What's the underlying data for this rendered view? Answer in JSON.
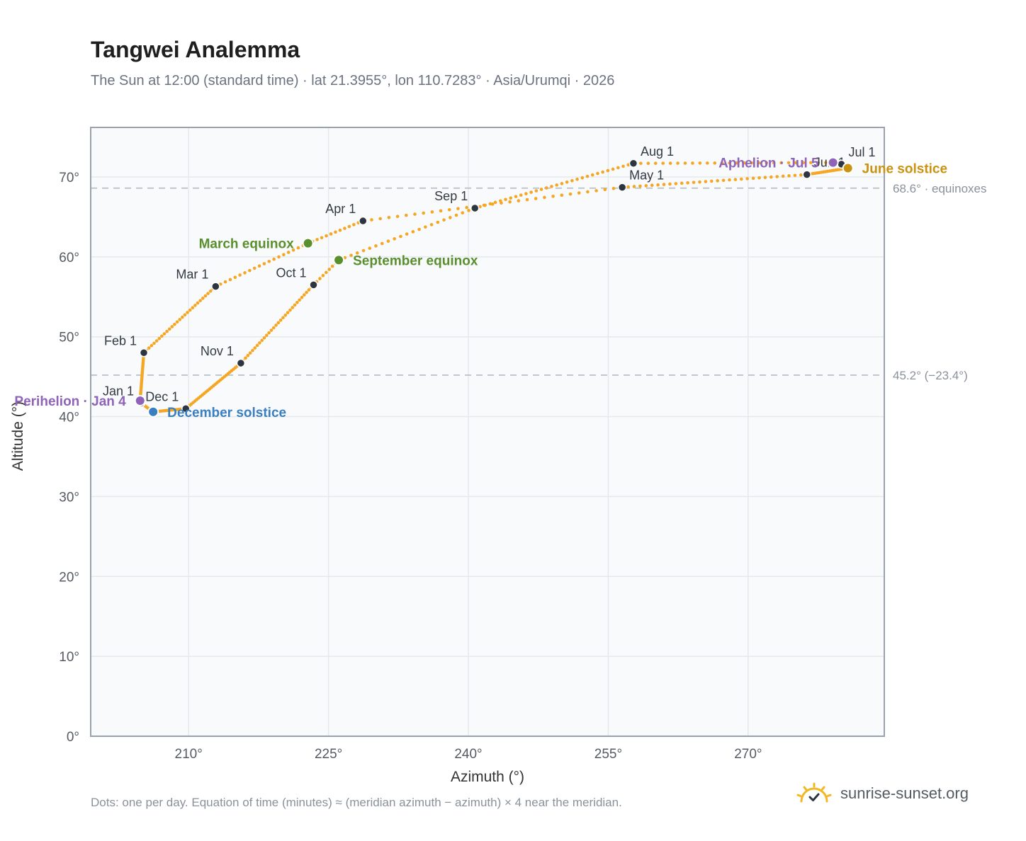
{
  "header": {
    "title": "Tangwei Analemma",
    "subtitle": "The Sun at 12:00 (standard time) · lat 21.3955°, lon 110.7283° · Asia/Urumqi · 2026"
  },
  "footer": {
    "note": "Dots: one per day. Equation of time (minutes) ≈ (meridian azimuth − azimuth) × 4 near the meridian.",
    "brand": "sunrise-sunset.org"
  },
  "colors": {
    "curve": "#f5a623",
    "month_dot": "#2d3540",
    "equinox": "#5a8f2e",
    "june_solstice": "#c9920f",
    "december_solstice": "#3a7fc1",
    "apsis": "#8e63b8",
    "reference_line": "#b7c0c8",
    "plot_bg": "#f8fafc",
    "grid": "#e6e9ec",
    "frame": "#98a2ae"
  },
  "chart_data": {
    "type": "scatter",
    "xlabel": "Azimuth (°)",
    "ylabel": "Altitude (°)",
    "xlim": [
      199.5,
      284.6
    ],
    "ylim": [
      0,
      76.2
    ],
    "xticks": [
      210,
      225,
      240,
      255,
      270
    ],
    "xtick_labels": [
      "210°",
      "225°",
      "240°",
      "255°",
      "270°"
    ],
    "yticks": [
      0,
      10,
      20,
      30,
      40,
      50,
      60,
      70
    ],
    "ytick_labels": [
      "0°",
      "10°",
      "20°",
      "30°",
      "40°",
      "50°",
      "60°",
      "70°"
    ],
    "grid": true,
    "reference_lines": [
      {
        "y": 68.6,
        "label": "68.6° · equinoxes"
      },
      {
        "y": 45.2,
        "label": "45.2° (−23.4°)"
      }
    ],
    "path_nodes": [
      {
        "day": 1,
        "az": 204.9,
        "alt": 41.7
      },
      {
        "day": 4,
        "az": 204.8,
        "alt": 42.0
      },
      {
        "day": 32,
        "az": 205.2,
        "alt": 48.0
      },
      {
        "day": 60,
        "az": 212.9,
        "alt": 56.3
      },
      {
        "day": 79,
        "az": 222.8,
        "alt": 61.7
      },
      {
        "day": 91,
        "az": 228.7,
        "alt": 64.5
      },
      {
        "day": 121,
        "az": 256.5,
        "alt": 68.7
      },
      {
        "day": 152,
        "az": 276.3,
        "alt": 70.3
      },
      {
        "day": 172,
        "az": 280.7,
        "alt": 71.1
      },
      {
        "day": 182,
        "az": 280.0,
        "alt": 71.6
      },
      {
        "day": 186,
        "az": 279.1,
        "alt": 71.8
      },
      {
        "day": 213,
        "az": 257.7,
        "alt": 71.7
      },
      {
        "day": 244,
        "az": 240.7,
        "alt": 66.1
      },
      {
        "day": 266,
        "az": 226.1,
        "alt": 59.6
      },
      {
        "day": 274,
        "az": 223.4,
        "alt": 56.5
      },
      {
        "day": 305,
        "az": 215.6,
        "alt": 46.7
      },
      {
        "day": 335,
        "az": 209.7,
        "alt": 41.0
      },
      {
        "day": 355,
        "az": 206.2,
        "alt": 40.6
      },
      {
        "day": 365,
        "az": 204.9,
        "alt": 41.7
      }
    ],
    "months": [
      {
        "label": "Jan 1",
        "az": 204.9,
        "alt": 41.7,
        "anchor": "end"
      },
      {
        "label": "Feb 1",
        "az": 205.2,
        "alt": 48.0,
        "anchor": "end"
      },
      {
        "label": "Mar 1",
        "az": 212.9,
        "alt": 56.3,
        "anchor": "end"
      },
      {
        "label": "Apr 1",
        "az": 228.7,
        "alt": 64.5,
        "anchor": "end"
      },
      {
        "label": "May 1",
        "az": 256.5,
        "alt": 68.7,
        "anchor": "start"
      },
      {
        "label": "Jun 1",
        "az": 276.3,
        "alt": 70.3,
        "anchor": "start"
      },
      {
        "label": "Jul 1",
        "az": 280.0,
        "alt": 71.6,
        "anchor": "start"
      },
      {
        "label": "Aug 1",
        "az": 257.7,
        "alt": 71.7,
        "anchor": "start"
      },
      {
        "label": "Sep 1",
        "az": 240.7,
        "alt": 66.1,
        "anchor": "end"
      },
      {
        "label": "Oct 1",
        "az": 223.4,
        "alt": 56.5,
        "anchor": "end"
      },
      {
        "label": "Nov 1",
        "az": 215.6,
        "alt": 46.7,
        "anchor": "end"
      },
      {
        "label": "Dec 1",
        "az": 209.7,
        "alt": 41.0,
        "anchor": "end"
      }
    ],
    "events": [
      {
        "label": "March equinox",
        "az": 222.8,
        "alt": 61.7,
        "color_key": "equinox",
        "anchor": "end"
      },
      {
        "label": "September equinox",
        "az": 226.1,
        "alt": 59.6,
        "color_key": "equinox",
        "anchor": "start"
      },
      {
        "label": "June solstice",
        "az": 280.7,
        "alt": 71.1,
        "color_key": "june_solstice",
        "anchor": "start"
      },
      {
        "label": "December solstice",
        "az": 206.2,
        "alt": 40.6,
        "color_key": "december_solstice",
        "anchor": "start"
      },
      {
        "label": "Perihelion · Jan 4",
        "az": 204.8,
        "alt": 42.0,
        "color_key": "apsis",
        "anchor": "end"
      },
      {
        "label": "Aphelion · Jul 5",
        "az": 279.1,
        "alt": 71.8,
        "color_key": "apsis",
        "anchor": "end"
      }
    ]
  }
}
